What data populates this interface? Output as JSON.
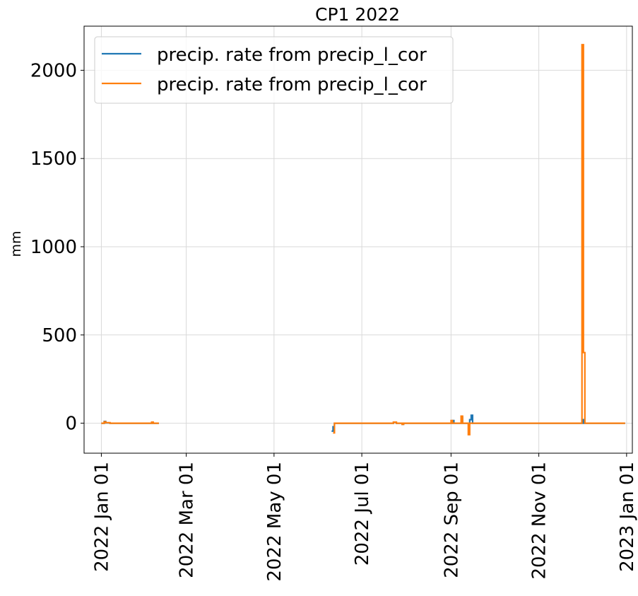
{
  "chart_data": {
    "type": "line",
    "title": "CP1 2022",
    "xlabel": "",
    "ylabel": "mm",
    "grid": true,
    "legend_position": "upper-left",
    "xlim": [
      "2021-12-20",
      "2023-01-05"
    ],
    "ylim": [
      -170,
      2250
    ],
    "x_ticks": [
      {
        "date": "2022-01-01",
        "label": "2022 Jan 01"
      },
      {
        "date": "2022-03-01",
        "label": "2022 Mar 01"
      },
      {
        "date": "2022-05-01",
        "label": "2022 May 01"
      },
      {
        "date": "2022-07-01",
        "label": "2022 Jul 01"
      },
      {
        "date": "2022-09-01",
        "label": "2022 Sep 01"
      },
      {
        "date": "2022-11-01",
        "label": "2022 Nov 01"
      },
      {
        "date": "2023-01-01",
        "label": "2023 Jan 01"
      }
    ],
    "y_ticks": [
      0,
      500,
      1000,
      1500,
      2000
    ],
    "series": [
      {
        "name": "precip. rate from precip_l_cor",
        "color": "#1f77b4",
        "segments": [
          [
            [
              "2022-01-01",
              0
            ],
            [
              "2022-01-03",
              0
            ],
            [
              "2022-01-03",
              10
            ],
            [
              "2022-01-04",
              10
            ],
            [
              "2022-01-04",
              2
            ],
            [
              "2022-01-07",
              2
            ],
            [
              "2022-01-07",
              0
            ],
            [
              "2022-02-05",
              0
            ],
            [
              "2022-02-05",
              5
            ],
            [
              "2022-02-06",
              5
            ],
            [
              "2022-02-06",
              0
            ],
            [
              "2022-02-10",
              0
            ]
          ],
          [
            [
              "2022-06-10",
              -45
            ],
            [
              "2022-06-11",
              -45
            ],
            [
              "2022-06-11",
              -20
            ],
            [
              "2022-06-12",
              -20
            ],
            [
              "2022-06-12",
              0
            ],
            [
              "2022-07-23",
              0
            ],
            [
              "2022-07-23",
              6
            ],
            [
              "2022-07-25",
              6
            ],
            [
              "2022-07-25",
              0
            ],
            [
              "2022-07-29",
              0
            ],
            [
              "2022-07-29",
              -6
            ],
            [
              "2022-07-30",
              -6
            ],
            [
              "2022-07-30",
              0
            ],
            [
              "2022-09-02",
              0
            ],
            [
              "2022-09-02",
              15
            ],
            [
              "2022-09-03",
              15
            ],
            [
              "2022-09-03",
              0
            ],
            [
              "2022-09-08",
              0
            ],
            [
              "2022-09-08",
              35
            ],
            [
              "2022-09-09",
              35
            ],
            [
              "2022-09-09",
              0
            ],
            [
              "2022-09-14",
              0
            ],
            [
              "2022-09-14",
              20
            ],
            [
              "2022-09-15",
              20
            ],
            [
              "2022-09-15",
              45
            ],
            [
              "2022-09-16",
              45
            ],
            [
              "2022-09-16",
              0
            ],
            [
              "2022-12-01",
              0
            ],
            [
              "2022-12-01",
              20
            ],
            [
              "2022-12-02",
              20
            ],
            [
              "2022-12-02",
              0
            ],
            [
              "2022-12-31",
              0
            ]
          ]
        ]
      },
      {
        "name": "precip. rate from precip_l_cor",
        "color": "#ff7f0e",
        "segments": [
          [
            [
              "2022-01-01",
              0
            ],
            [
              "2022-01-03",
              0
            ],
            [
              "2022-01-03",
              8
            ],
            [
              "2022-01-04",
              8
            ],
            [
              "2022-01-04",
              3
            ],
            [
              "2022-01-07",
              3
            ],
            [
              "2022-01-07",
              0
            ],
            [
              "2022-02-05",
              0
            ],
            [
              "2022-02-05",
              6
            ],
            [
              "2022-02-06",
              6
            ],
            [
              "2022-02-06",
              0
            ],
            [
              "2022-02-10",
              0
            ]
          ],
          [
            [
              "2022-06-11",
              -55
            ],
            [
              "2022-06-12",
              -55
            ],
            [
              "2022-06-12",
              0
            ],
            [
              "2022-07-23",
              0
            ],
            [
              "2022-07-23",
              6
            ],
            [
              "2022-07-25",
              6
            ],
            [
              "2022-07-25",
              0
            ],
            [
              "2022-07-29",
              0
            ],
            [
              "2022-07-29",
              -6
            ],
            [
              "2022-07-30",
              -6
            ],
            [
              "2022-07-30",
              0
            ],
            [
              "2022-09-01",
              0
            ],
            [
              "2022-09-01",
              15
            ],
            [
              "2022-09-02",
              15
            ],
            [
              "2022-09-02",
              0
            ],
            [
              "2022-09-08",
              0
            ],
            [
              "2022-09-08",
              40
            ],
            [
              "2022-09-09",
              40
            ],
            [
              "2022-09-09",
              0
            ],
            [
              "2022-09-13",
              0
            ],
            [
              "2022-09-13",
              -65
            ],
            [
              "2022-09-14",
              -65
            ],
            [
              "2022-09-14",
              0
            ],
            [
              "2022-12-01",
              0
            ],
            [
              "2022-12-01",
              2145
            ],
            [
              "2022-12-02",
              2145
            ],
            [
              "2022-12-02",
              400
            ],
            [
              "2022-12-03",
              400
            ],
            [
              "2022-12-03",
              0
            ],
            [
              "2022-12-31",
              0
            ]
          ]
        ]
      }
    ]
  }
}
